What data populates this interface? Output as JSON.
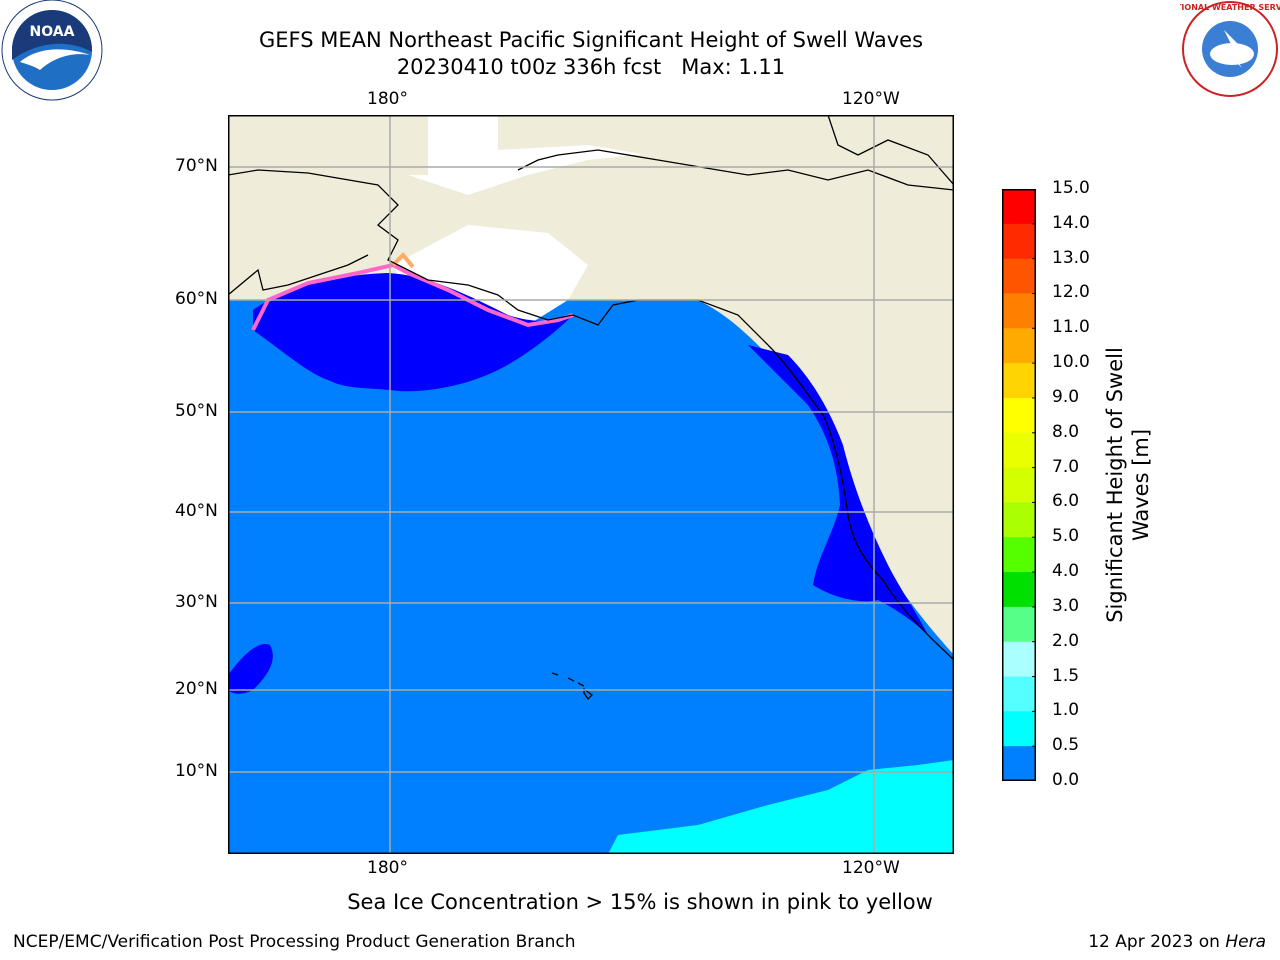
{
  "title": {
    "line1": "GEFS MEAN Northeast Pacific Significant Height of Swell Waves",
    "line2": "20230410 t00z 336h fcst   Max: 1.11"
  },
  "map": {
    "projection": "plate-carree",
    "lon_ticks_top": [
      "180°",
      "120°W"
    ],
    "lon_ticks_bottom": [
      "180°",
      "120°W"
    ],
    "lat_ticks": [
      "70°N",
      "60°N",
      "50°N",
      "40°N",
      "30°N",
      "20°N",
      "10°N"
    ],
    "grid": true,
    "colors": {
      "land": "#efedda",
      "ocean_0_0_5": "#0000ff",
      "ocean_0_5_1_0": "#0080ff",
      "ocean_1_0_1_5": "#00ffff",
      "sea_ice": [
        "#ff66cc",
        "#ffaa66",
        "#ffee00"
      ]
    }
  },
  "colorbar": {
    "label": "Significant Height of Swell Waves [m]",
    "label_line1": "Significant Height of Swell",
    "label_line2": "Waves [m]",
    "ticks": [
      "15.0",
      "14.0",
      "13.0",
      "12.0",
      "11.0",
      "10.0",
      "9.0",
      "8.0",
      "7.0",
      "6.0",
      "5.0",
      "4.0",
      "3.0",
      "2.0",
      "1.5",
      "1.0",
      "0.5",
      "0.0"
    ],
    "colors": [
      "#ff0000",
      "#ff2a00",
      "#ff5500",
      "#ff8000",
      "#ffaa00",
      "#ffd400",
      "#ffff00",
      "#eaff00",
      "#d4ff00",
      "#aaff00",
      "#55ff00",
      "#00e000",
      "#55ff88",
      "#aaffff",
      "#55ffff",
      "#00ffff",
      "#0080ff",
      "#0000ff"
    ]
  },
  "sea_ice_note": "Sea Ice Concentration > 15% is shown in pink to yellow",
  "footer": {
    "left": "NCEP/EMC/Verification Post Processing Product Generation Branch",
    "right_date": "12 Apr 2023 on ",
    "right_machine": "Hera"
  },
  "logos": {
    "noaa_text": "NOAA",
    "nws_text": "NATIONAL WEATHER SERVICE"
  }
}
